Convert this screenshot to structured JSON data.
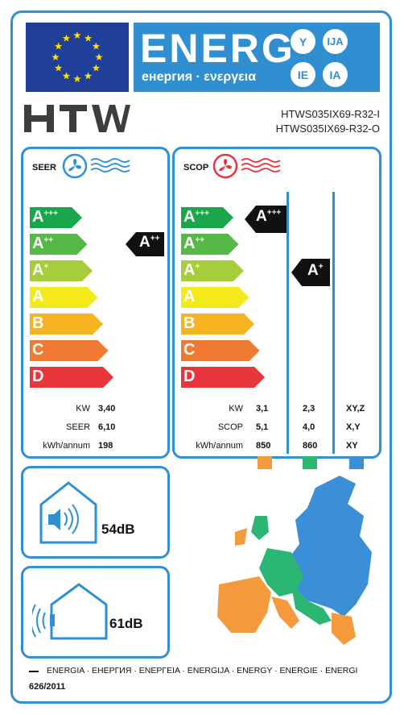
{
  "header": {
    "energy_word": "ENERG",
    "energy_sub": "енергия · ενεργεια",
    "lang_y": "Y",
    "lang_ija": "IJA",
    "lang_ie": "IE",
    "lang_ia": "IA"
  },
  "brand": {
    "logo": "HTW",
    "model_indoor": "HTWS035IX69-R32-I",
    "model_outdoor": "HTWS035IX69-R32-O"
  },
  "seer": {
    "title": "SEER",
    "classes": [
      "A",
      "A",
      "A",
      "A",
      "B",
      "C",
      "D"
    ],
    "class_sups": [
      "+++",
      "++",
      "+",
      "",
      "",
      "",
      ""
    ],
    "rating": "A",
    "rating_sup": "++",
    "rows": [
      {
        "label": "KW",
        "value": "3,40"
      },
      {
        "label": "SEER",
        "value": "6,10"
      },
      {
        "label": "kWh/annum",
        "value": "198"
      }
    ]
  },
  "scop": {
    "title": "SCOP",
    "classes": [
      "A",
      "A",
      "A",
      "A",
      "B",
      "C",
      "D"
    ],
    "class_sups": [
      "+++",
      "++",
      "+",
      "",
      "",
      "",
      ""
    ],
    "rating_warm": "A",
    "rating_warm_sup": "+++",
    "rating_avg": "A",
    "rating_avg_sup": "+",
    "rows": [
      {
        "label": "KW",
        "warm": "3,1",
        "avg": "2,3",
        "cold": "XY,Z"
      },
      {
        "label": "SCOP",
        "warm": "5,1",
        "avg": "4,0",
        "cold": "X,Y"
      },
      {
        "label": "kWh/annum",
        "warm": "850",
        "avg": "860",
        "cold": "XY"
      }
    ],
    "zone_colors": [
      "#f39a3d",
      "#2bb673",
      "#3a8fd6"
    ]
  },
  "noise": {
    "indoor": "54dB",
    "outdoor": "61dB"
  },
  "class_colors": [
    "#1aa64a",
    "#55b847",
    "#a6cd3a",
    "#f4ea1b",
    "#f7b21f",
    "#f07a32",
    "#e8343b"
  ],
  "footer": {
    "languages": "ENERGIA · ЕНЕРГИЯ · ΕΝΕΡΓΕΙΑ · ENERGIJA · ENERGY · ENERGIE · ENERGI",
    "regulation": "626/2011"
  }
}
